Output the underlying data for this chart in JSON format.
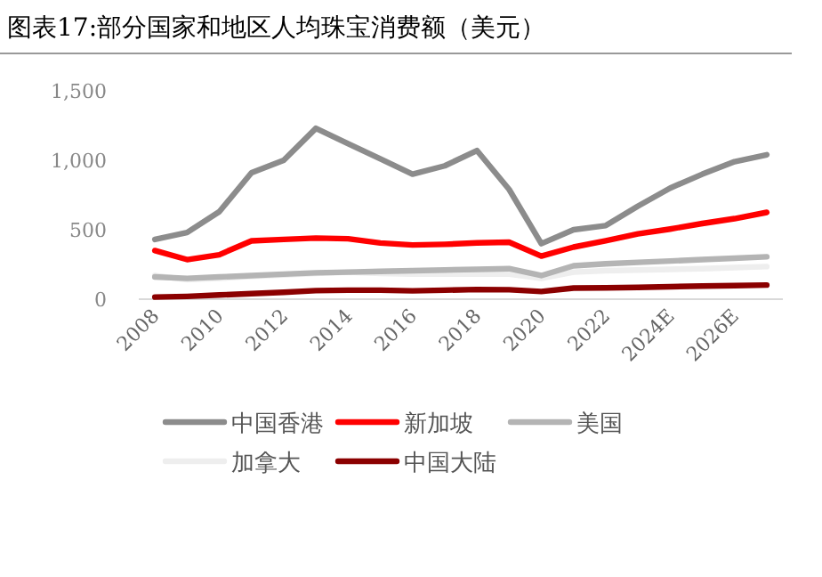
{
  "chart_data": {
    "type": "line",
    "title": "图表17:部分国家和地区人均珠宝消费额（美元）",
    "categories": [
      "2008",
      null,
      "2010",
      null,
      "2012",
      null,
      "2014",
      null,
      "2016",
      null,
      "2018",
      null,
      "2020",
      null,
      "2022",
      null,
      "2024E",
      null,
      "2026E",
      null
    ],
    "series": [
      {
        "name": "中国香港",
        "color": "#8c8c8c",
        "values": [
          430,
          480,
          630,
          910,
          1000,
          1230,
          1120,
          1010,
          900,
          960,
          1070,
          790,
          400,
          500,
          530,
          670,
          800,
          900,
          990,
          1040
        ]
      },
      {
        "name": "新加坡",
        "color": "#ff0000",
        "values": [
          350,
          285,
          320,
          420,
          430,
          440,
          435,
          405,
          390,
          395,
          405,
          410,
          310,
          375,
          420,
          470,
          505,
          545,
          580,
          625
        ]
      },
      {
        "name": "美国",
        "color": "#b4b4b4",
        "values": [
          160,
          150,
          160,
          170,
          180,
          190,
          195,
          200,
          205,
          210,
          215,
          220,
          170,
          240,
          255,
          265,
          275,
          285,
          295,
          305
        ]
      },
      {
        "name": "加拿大",
        "color": "#eeeeee",
        "values": [
          170,
          140,
          150,
          165,
          175,
          185,
          195,
          185,
          180,
          180,
          180,
          180,
          150,
          195,
          205,
          210,
          215,
          220,
          228,
          235
        ]
      },
      {
        "name": "中国大陆",
        "color": "#8b0000",
        "values": [
          15,
          20,
          30,
          40,
          50,
          62,
          65,
          65,
          60,
          65,
          70,
          68,
          55,
          80,
          82,
          85,
          90,
          95,
          98,
          102
        ]
      }
    ],
    "ylim": [
      0,
      1500
    ],
    "yticks": [
      0,
      500,
      {
        "value": 1000,
        "label": "1,000"
      },
      {
        "value": 1500,
        "label": "1,500"
      }
    ],
    "grid": false,
    "legend": "bottom",
    "marker": "none",
    "line_style": "solid"
  }
}
